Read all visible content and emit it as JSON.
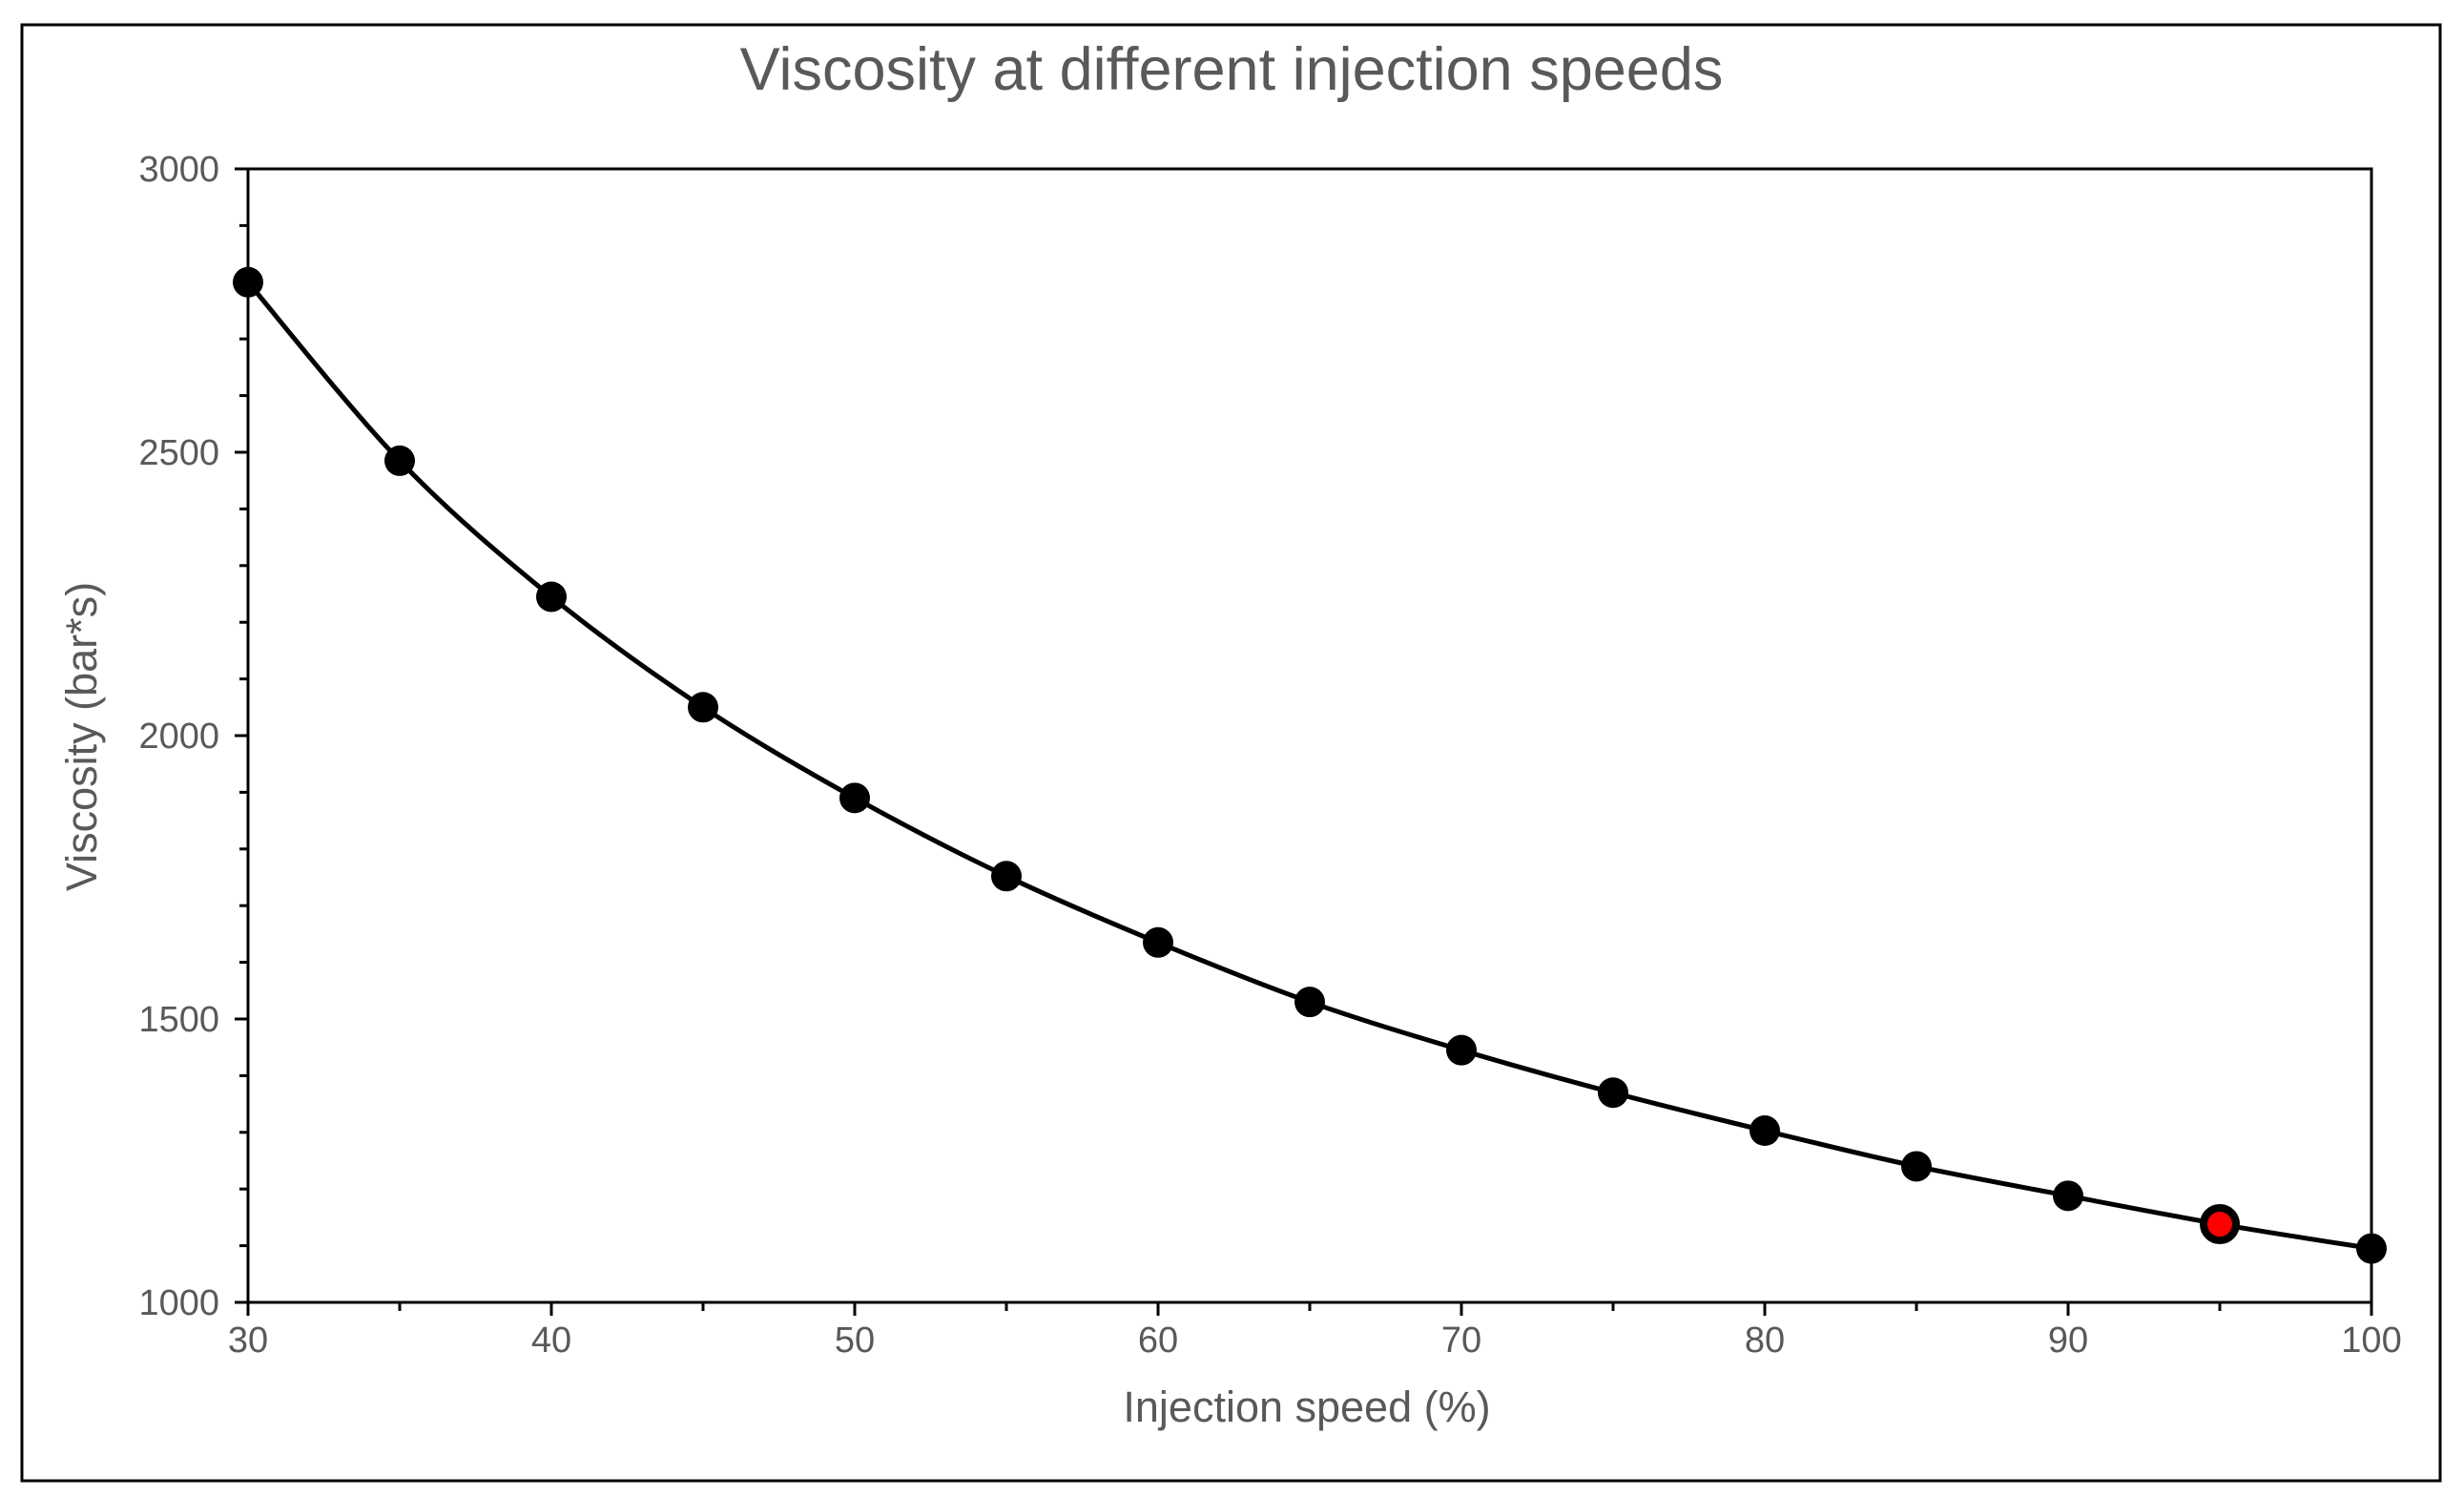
{
  "chart_data": {
    "type": "line",
    "title": "Viscosity at different injection speeds",
    "xlabel": "Injection speed (%)",
    "ylabel": "Viscosity (bar*s)",
    "xlim": [
      30,
      100
    ],
    "ylim": [
      1000,
      3000
    ],
    "x_ticks": [
      30,
      40,
      50,
      60,
      70,
      80,
      90,
      100
    ],
    "y_ticks": [
      1000,
      1500,
      2000,
      2500,
      3000
    ],
    "x_minor_step": 5,
    "y_minor_step": 100,
    "grid": false,
    "series": [
      {
        "name": "Viscosity",
        "marker": "circle",
        "color": "#000000",
        "smooth": true,
        "x": [
          30,
          35,
          40,
          45,
          50,
          55,
          60,
          65,
          70,
          75,
          80,
          85,
          90,
          95,
          100
        ],
        "y": [
          2800,
          2485,
          2245,
          2050,
          1890,
          1752,
          1635,
          1530,
          1445,
          1370,
          1303,
          1240,
          1188,
          1138,
          1095
        ]
      }
    ],
    "highlight": {
      "x": 95,
      "y": 1138,
      "fill_color": "#ff0000",
      "edge_color": "#000000"
    }
  }
}
